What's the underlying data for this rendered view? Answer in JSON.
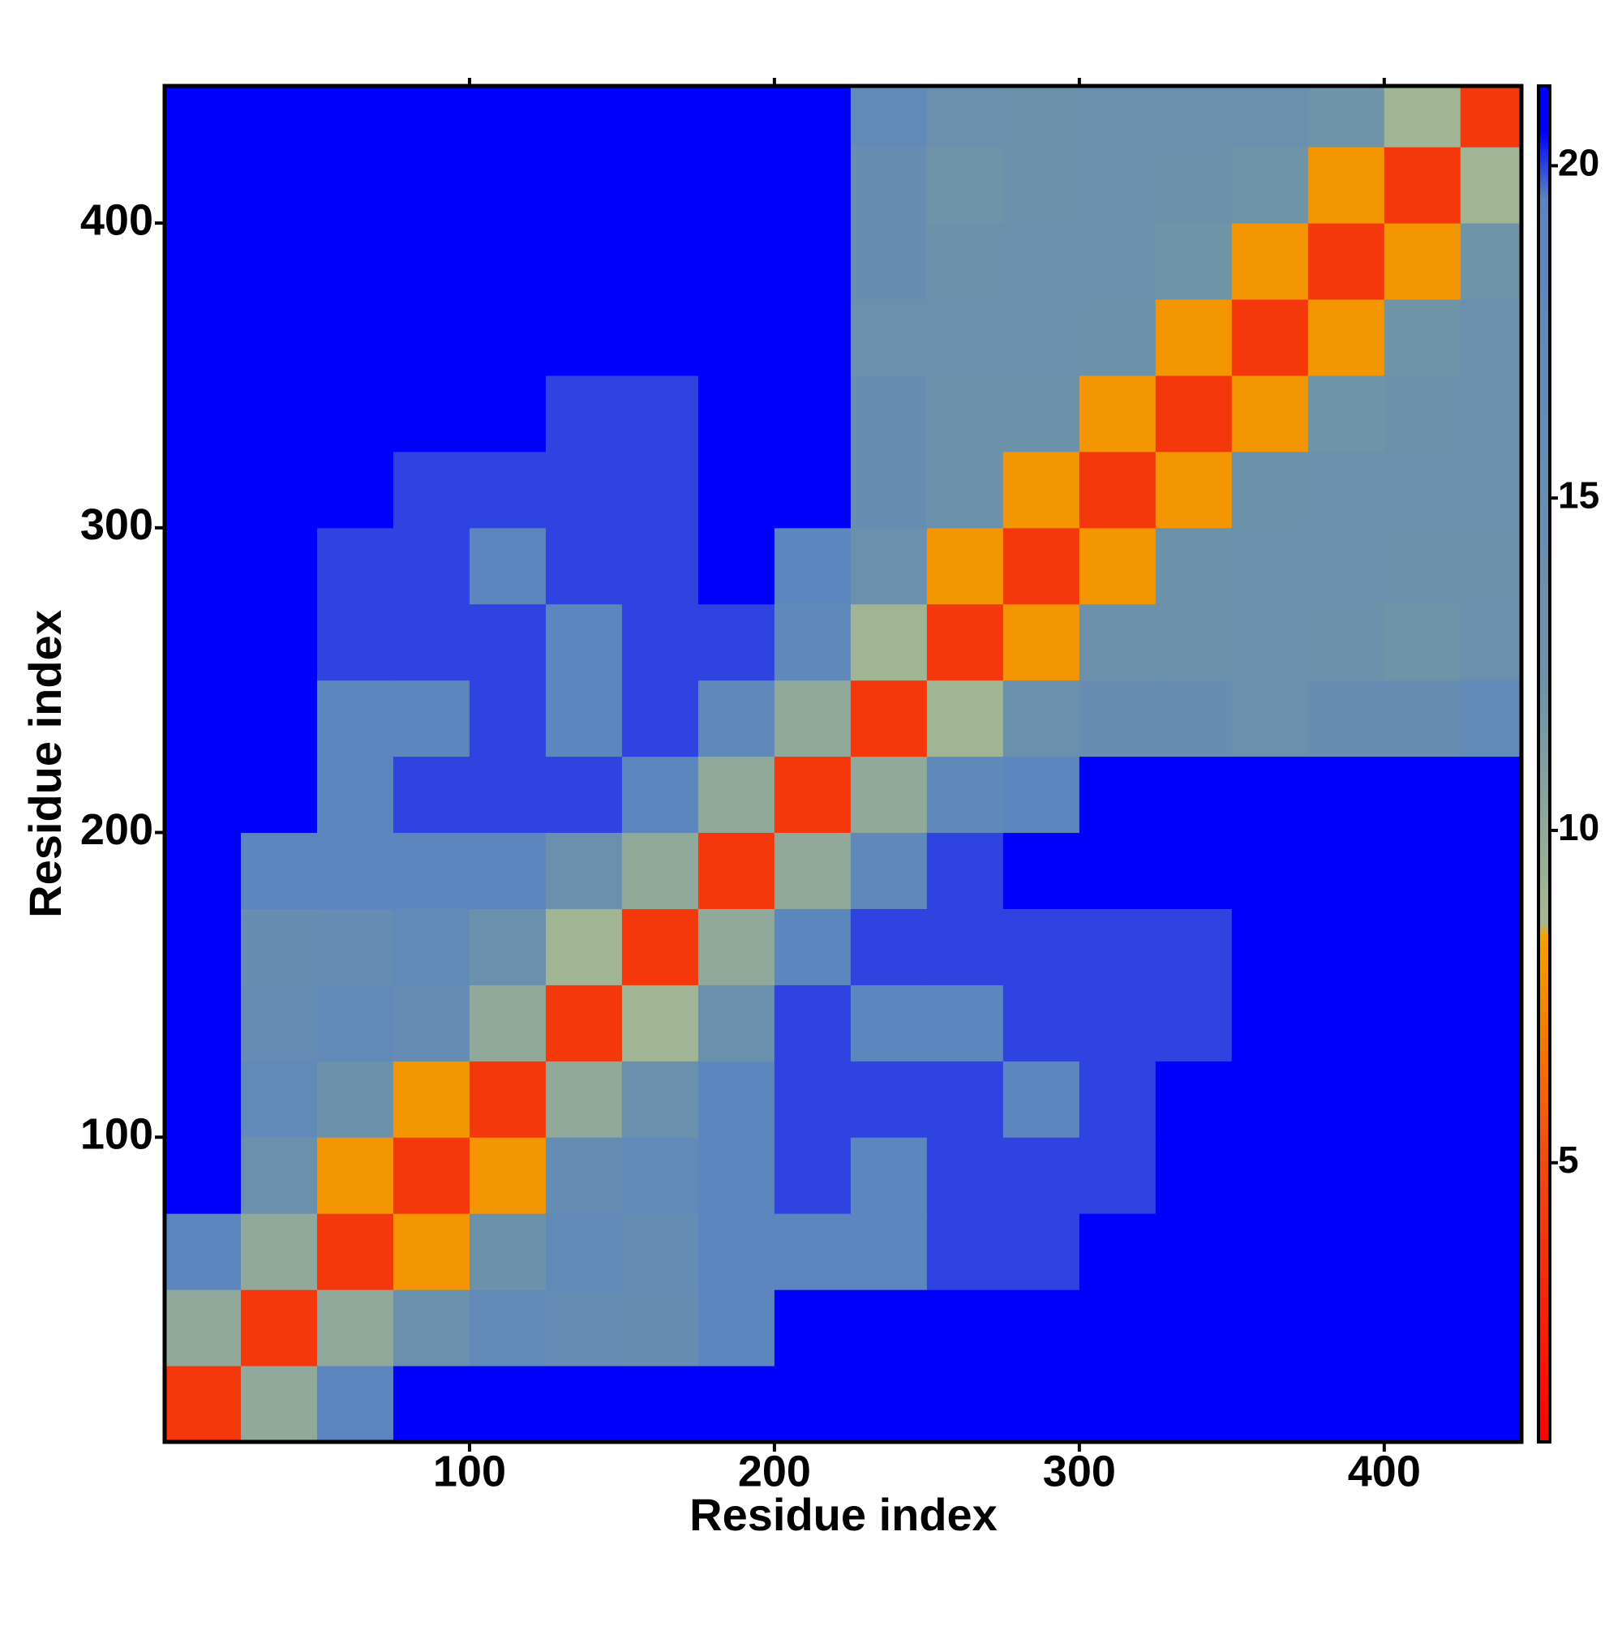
{
  "chart_data": {
    "type": "heatmap",
    "xlabel": "Residue index",
    "ylabel": "Residue index",
    "xlim": [
      0,
      445
    ],
    "ylim": [
      0,
      445
    ],
    "xticks": [
      100,
      200,
      300,
      400
    ],
    "yticks": [
      100,
      200,
      300,
      400
    ],
    "bins": [
      0,
      25,
      50,
      75,
      100,
      125,
      150,
      175,
      200,
      225,
      250,
      275,
      300,
      325,
      350,
      375,
      400,
      425,
      445
    ],
    "values": [
      [
        4,
        10,
        19,
        21,
        21,
        21,
        21,
        21,
        21,
        21,
        21,
        21,
        21,
        21,
        21,
        21,
        21,
        21
      ],
      [
        10,
        4,
        10,
        14,
        17,
        16,
        15,
        19,
        21,
        21,
        21,
        21,
        21,
        21,
        21,
        21,
        21,
        21
      ],
      [
        19,
        10,
        4,
        8,
        13,
        17,
        16,
        19,
        19,
        19,
        20,
        20,
        21,
        21,
        21,
        21,
        21,
        21
      ],
      [
        21,
        14,
        8,
        4,
        8,
        16,
        17,
        19,
        20,
        19,
        20,
        20,
        20,
        21,
        21,
        21,
        21,
        21
      ],
      [
        21,
        17,
        13,
        8,
        4,
        10,
        14,
        19,
        20,
        20,
        20,
        19,
        20,
        21,
        21,
        21,
        21,
        21
      ],
      [
        21,
        16,
        17,
        16,
        10,
        4,
        9,
        14,
        20,
        19,
        19,
        20,
        20,
        20,
        21,
        21,
        21,
        21
      ],
      [
        21,
        15,
        16,
        17,
        14,
        9,
        4,
        10,
        19,
        20,
        20,
        20,
        20,
        20,
        21,
        21,
        21,
        21
      ],
      [
        21,
        19,
        19,
        19,
        19,
        14,
        10,
        4,
        10,
        18,
        20,
        21,
        21,
        21,
        21,
        21,
        21,
        21
      ],
      [
        21,
        21,
        19,
        20,
        20,
        20,
        19,
        10,
        4,
        10,
        18,
        19,
        21,
        21,
        21,
        21,
        21,
        21
      ],
      [
        21,
        21,
        19,
        19,
        20,
        19,
        20,
        18,
        10,
        4,
        9,
        14,
        15,
        15,
        14,
        15,
        15,
        17
      ],
      [
        21,
        21,
        20,
        20,
        20,
        19,
        20,
        20,
        18,
        9,
        4,
        8,
        13,
        13,
        14,
        13,
        12,
        14
      ],
      [
        21,
        21,
        20,
        20,
        19,
        20,
        20,
        21,
        19,
        14,
        8,
        4,
        8,
        13,
        14,
        14,
        13,
        13
      ],
      [
        21,
        21,
        21,
        20,
        20,
        20,
        20,
        21,
        21,
        15,
        13,
        8,
        4,
        8,
        13,
        14,
        14,
        14
      ],
      [
        21,
        21,
        21,
        21,
        21,
        20,
        20,
        21,
        21,
        15,
        13,
        13,
        8,
        4,
        8,
        12,
        13,
        14
      ],
      [
        21,
        21,
        21,
        21,
        21,
        21,
        21,
        21,
        21,
        14,
        14,
        14,
        13,
        8,
        4,
        8,
        12,
        14
      ],
      [
        21,
        21,
        21,
        21,
        21,
        21,
        21,
        21,
        21,
        15,
        13,
        14,
        14,
        12,
        8,
        4,
        8,
        12
      ],
      [
        21,
        21,
        21,
        21,
        21,
        21,
        21,
        21,
        21,
        15,
        12,
        13,
        14,
        13,
        12,
        8,
        4,
        9
      ],
      [
        21,
        21,
        21,
        21,
        21,
        21,
        21,
        21,
        21,
        17,
        14,
        13,
        14,
        14,
        14,
        12,
        9,
        4
      ]
    ],
    "colorbar": {
      "lim": [
        0.8,
        21.2
      ],
      "ticks": [
        5,
        10,
        15,
        20
      ],
      "stops": [
        {
          "value": 0.8,
          "color": "#ff0000"
        },
        {
          "value": 5,
          "color": "#f04a10"
        },
        {
          "value": 8.4,
          "color": "#f5a000"
        },
        {
          "value": 8.6,
          "color": "#a8b890"
        },
        {
          "value": 12,
          "color": "#6f94a8"
        },
        {
          "value": 19.5,
          "color": "#5b85c0"
        },
        {
          "value": 20.5,
          "color": "#0000ff"
        },
        {
          "value": 21.2,
          "color": "#0000ff"
        }
      ]
    }
  }
}
